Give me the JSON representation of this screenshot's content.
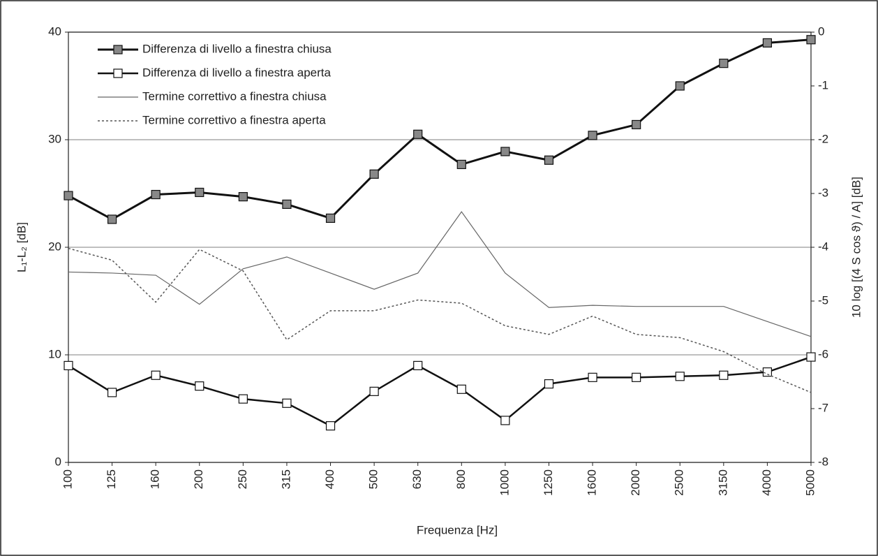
{
  "chart_data": {
    "type": "line",
    "xlabel": "Frequenza [Hz]",
    "ylabel": "L₁-L₂ [dB]",
    "y2label": "10 log [(4 S cos ϑ) / A] [dB]",
    "categories": [
      "100",
      "125",
      "160",
      "200",
      "250",
      "315",
      "400",
      "500",
      "630",
      "800",
      "1000",
      "1250",
      "1600",
      "2000",
      "2500",
      "3150",
      "4000",
      "5000"
    ],
    "ylim": [
      0,
      40
    ],
    "yticks": [
      0,
      10,
      20,
      30,
      40
    ],
    "y2lim": [
      -8,
      0
    ],
    "y2ticks": [
      -8,
      -7,
      -6,
      -5,
      -4,
      -3,
      -2,
      -1,
      0
    ],
    "grid": true,
    "legend": "upper left",
    "series": [
      {
        "name": "Differenza di livello a finestra chiusa",
        "color": "#111111",
        "marker": "square",
        "marker_fill": "#888888",
        "width": 3,
        "dash": "solid",
        "values": [
          24.8,
          22.6,
          24.9,
          25.1,
          24.7,
          24.0,
          22.7,
          26.8,
          30.5,
          27.7,
          28.9,
          28.1,
          30.4,
          31.4,
          35.0,
          37.1,
          39.0,
          39.3
        ]
      },
      {
        "name": "Differenza di livello a finestra aperta",
        "color": "#111111",
        "marker": "square",
        "marker_fill": "#ffffff",
        "width": 2.5,
        "dash": "solid",
        "values": [
          9.0,
          6.5,
          8.1,
          7.1,
          5.9,
          5.5,
          3.4,
          6.6,
          9.0,
          6.8,
          3.9,
          7.3,
          7.9,
          7.9,
          8.0,
          8.1,
          8.4,
          9.8
        ]
      },
      {
        "name": "Termine correttivo a finestra chiusa",
        "color": "#666666",
        "marker": "none",
        "marker_fill": "none",
        "width": 1.2,
        "dash": "solid",
        "axis": "y2",
        "values": [
          -4.46,
          -4.48,
          -4.52,
          -5.06,
          -4.4,
          -4.18,
          -4.48,
          -4.78,
          -4.48,
          -3.34,
          -4.48,
          -5.12,
          -5.08,
          -5.1,
          -5.1,
          -5.1,
          -5.38,
          -5.66
        ]
      },
      {
        "name": "Termine correttivo a finestra aperta",
        "color": "#555555",
        "marker": "none",
        "marker_fill": "none",
        "width": 1.5,
        "dash": "dotted",
        "axis": "y2",
        "values": [
          -4.02,
          -4.24,
          -5.02,
          -4.04,
          -4.44,
          -5.72,
          -5.18,
          -5.18,
          -4.98,
          -5.04,
          -5.46,
          -5.62,
          -5.28,
          -5.62,
          -5.68,
          -5.94,
          -6.36,
          -6.7
        ]
      }
    ]
  }
}
